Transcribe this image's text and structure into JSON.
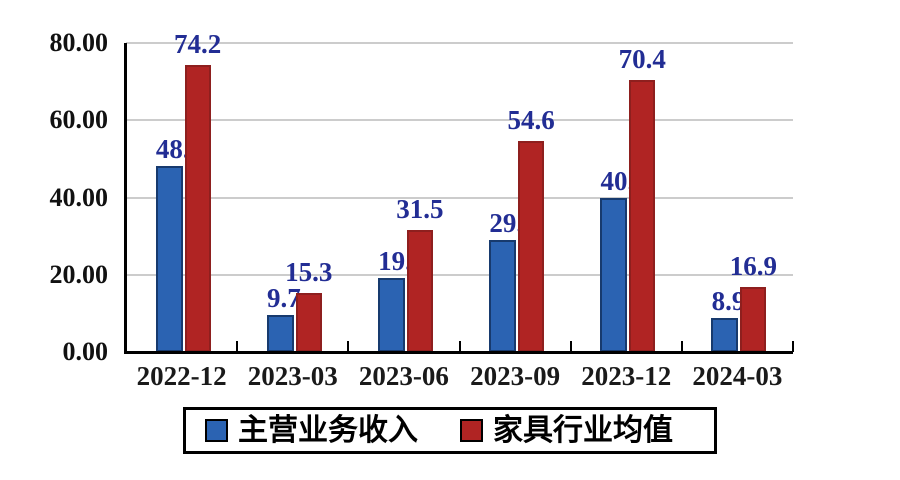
{
  "chart_data": {
    "type": "bar",
    "title": "",
    "xlabel": "",
    "ylabel": "",
    "categories": [
      "2022-12",
      "2023-03",
      "2023-06",
      "2023-09",
      "2023-12",
      "2024-03"
    ],
    "series": [
      {
        "name": "主营业务收入",
        "color": "#2b63b2",
        "border_color": "#173a6e",
        "values": [
          48.2,
          9.7,
          19.2,
          29.0,
          40.0,
          8.9
        ],
        "labels": [
          "48.",
          "9.7",
          "19.",
          "29.",
          "40.",
          "8.9"
        ]
      },
      {
        "name": "家具行业均值",
        "color": "#b02423",
        "border_color": "#8e1f1e",
        "values": [
          74.2,
          15.3,
          31.5,
          54.6,
          70.4,
          16.9
        ],
        "labels": [
          "74.2",
          "15.3",
          "31.5",
          "54.6",
          "70.4",
          "16.9"
        ]
      }
    ],
    "ylim": [
      0,
      80
    ],
    "y_tick_labels": [
      "0.00",
      "20.00",
      "40.00",
      "60.00",
      "80.00"
    ],
    "y_tick_values": [
      0,
      20,
      40,
      60,
      80
    ],
    "grid": true,
    "gridline_color": "#cccccc",
    "value_label_color": "#222d94",
    "axis_color": "#000000",
    "legend_position": "bottom"
  }
}
